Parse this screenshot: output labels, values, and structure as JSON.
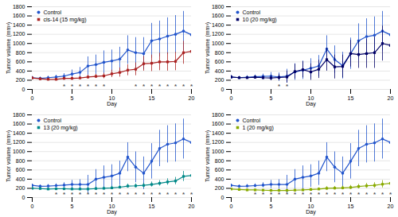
{
  "chart_data": [
    {
      "type": "line",
      "xlabel": "Day",
      "ylabel": "Tumor volume (mm³)",
      "x": [
        0,
        1,
        2,
        3,
        4,
        5,
        6,
        7,
        8,
        9,
        10,
        11,
        12,
        13,
        14,
        15,
        16,
        17,
        18,
        19,
        20
      ],
      "xlim": [
        0,
        20
      ],
      "xticks": [
        0,
        5,
        10,
        15,
        20
      ],
      "ylim": [
        0,
        1800
      ],
      "yticks": [
        0,
        200,
        400,
        600,
        800,
        1000,
        1200,
        1400,
        1600,
        1800
      ],
      "grid": "y",
      "legend": "upper left",
      "series": [
        {
          "name": "Control",
          "color": "#2255cc",
          "marker": "circle",
          "values": [
            255,
            240,
            255,
            270,
            290,
            335,
            370,
            510,
            540,
            590,
            620,
            660,
            860,
            800,
            780,
            1060,
            1100,
            1160,
            1200,
            1270,
            1190
          ],
          "errors": [
            30,
            30,
            35,
            40,
            55,
            90,
            110,
            200,
            210,
            250,
            240,
            260,
            310,
            330,
            350,
            380,
            390,
            400,
            410,
            430,
            420
          ]
        },
        {
          "name": "cis-14 (15 mg/kg)",
          "color": "#aa2222",
          "marker": "square",
          "values": [
            250,
            230,
            220,
            220,
            240,
            240,
            250,
            270,
            285,
            295,
            340,
            370,
            420,
            440,
            560,
            570,
            600,
            600,
            610,
            800,
            830
          ],
          "errors": [
            25,
            25,
            30,
            25,
            30,
            35,
            30,
            40,
            45,
            60,
            80,
            100,
            120,
            140,
            160,
            180,
            190,
            200,
            200,
            250,
            240
          ]
        }
      ],
      "annotations": [
        {
          "text": "*",
          "x": 4,
          "y": 20,
          "color": "#555555"
        },
        {
          "text": "*",
          "x": 5,
          "y": 20,
          "color": "#555555"
        },
        {
          "text": "*",
          "x": 6,
          "y": 20,
          "color": "#555555"
        },
        {
          "text": "*",
          "x": 7,
          "y": 20,
          "color": "#555555"
        },
        {
          "text": "*",
          "x": 8,
          "y": 20,
          "color": "#555555"
        },
        {
          "text": "*",
          "x": 9,
          "y": 20,
          "color": "#555555"
        },
        {
          "text": "*",
          "x": 13,
          "y": 20,
          "color": "#555555"
        },
        {
          "text": "*",
          "x": 14,
          "y": 20,
          "color": "#555555"
        },
        {
          "text": "*",
          "x": 15,
          "y": 20,
          "color": "#555555"
        },
        {
          "text": "*",
          "x": 16,
          "y": 20,
          "color": "#555555"
        },
        {
          "text": "*",
          "x": 17,
          "y": 20,
          "color": "#555555"
        },
        {
          "text": "*",
          "x": 18,
          "y": 20,
          "color": "#555555"
        },
        {
          "text": "*",
          "x": 19,
          "y": 20,
          "color": "#555555"
        },
        {
          "text": "*",
          "x": 20,
          "y": 20,
          "color": "#555555"
        }
      ]
    },
    {
      "type": "line",
      "xlabel": "Day",
      "ylabel": "Tumor volume (mm³)",
      "x": [
        0,
        1,
        2,
        3,
        4,
        5,
        6,
        7,
        8,
        9,
        10,
        11,
        12,
        13,
        14,
        15,
        16,
        17,
        18,
        19,
        20
      ],
      "xlim": [
        0,
        20
      ],
      "xticks": [
        0,
        5,
        10,
        15,
        20
      ],
      "ylim": [
        0,
        1800
      ],
      "yticks": [
        0,
        200,
        400,
        600,
        800,
        1000,
        1200,
        1400,
        1600,
        1800
      ],
      "grid": "y",
      "legend": "upper left",
      "series": [
        {
          "name": "Control",
          "color": "#2255cc",
          "marker": "circle",
          "values": [
            270,
            255,
            265,
            275,
            285,
            290,
            270,
            290,
            380,
            420,
            460,
            510,
            880,
            650,
            520,
            780,
            1060,
            1150,
            1180,
            1270,
            1190
          ],
          "errors": [
            35,
            30,
            35,
            40,
            50,
            80,
            90,
            150,
            180,
            200,
            210,
            230,
            290,
            300,
            290,
            340,
            370,
            390,
            400,
            430,
            420
          ]
        },
        {
          "name": "10 (20 mg/kg)",
          "color": "#000066",
          "marker": "square",
          "values": [
            270,
            255,
            255,
            265,
            255,
            250,
            260,
            270,
            390,
            430,
            380,
            440,
            650,
            490,
            500,
            780,
            760,
            780,
            800,
            1000,
            960
          ],
          "errors": [
            30,
            25,
            30,
            35,
            40,
            60,
            70,
            130,
            160,
            175,
            180,
            200,
            250,
            260,
            250,
            290,
            300,
            320,
            340,
            380,
            360
          ]
        }
      ],
      "annotations": [
        {
          "text": "*",
          "x": 6,
          "y": 20,
          "color": "#555555"
        },
        {
          "text": "*",
          "x": 7,
          "y": 20,
          "color": "#555555"
        }
      ]
    },
    {
      "type": "line",
      "xlabel": "Day",
      "ylabel": "Tumor volume (mm³)",
      "x": [
        0,
        1,
        2,
        3,
        4,
        5,
        6,
        7,
        8,
        9,
        10,
        11,
        12,
        13,
        14,
        15,
        16,
        17,
        18,
        19,
        20
      ],
      "xlim": [
        0,
        20
      ],
      "xticks": [
        0,
        5,
        10,
        15,
        20
      ],
      "ylim": [
        0,
        1800
      ],
      "yticks": [
        0,
        200,
        400,
        600,
        800,
        1000,
        1200,
        1400,
        1600,
        1800
      ],
      "grid": "y",
      "legend": "upper left",
      "series": [
        {
          "name": "Control",
          "color": "#2255cc",
          "marker": "circle",
          "values": [
            265,
            245,
            250,
            260,
            270,
            285,
            285,
            285,
            400,
            440,
            470,
            530,
            880,
            660,
            530,
            790,
            1070,
            1160,
            1190,
            1275,
            1200
          ],
          "errors": [
            30,
            30,
            35,
            40,
            55,
            90,
            105,
            200,
            210,
            250,
            245,
            265,
            315,
            335,
            355,
            385,
            395,
            405,
            415,
            435,
            425
          ]
        },
        {
          "name": "13 (20 mg/kg)",
          "color": "#008888",
          "marker": "square",
          "values": [
            200,
            195,
            185,
            190,
            190,
            185,
            185,
            185,
            195,
            200,
            210,
            225,
            250,
            255,
            265,
            285,
            310,
            340,
            360,
            460,
            480
          ],
          "errors": [
            20,
            20,
            20,
            20,
            20,
            25,
            25,
            30,
            30,
            30,
            35,
            35,
            45,
            45,
            50,
            55,
            60,
            70,
            80,
            110,
            120
          ]
        }
      ],
      "annotations": [
        {
          "text": "*",
          "x": 3,
          "y": 20,
          "color": "#555555"
        },
        {
          "text": "*",
          "x": 4,
          "y": 20,
          "color": "#555555"
        },
        {
          "text": "*",
          "x": 5,
          "y": 20,
          "color": "#555555"
        },
        {
          "text": "*",
          "x": 6,
          "y": 20,
          "color": "#555555"
        },
        {
          "text": "*",
          "x": 7,
          "y": 20,
          "color": "#555555"
        },
        {
          "text": "*",
          "x": 8,
          "y": 20,
          "color": "#555555"
        },
        {
          "text": "*",
          "x": 9,
          "y": 20,
          "color": "#555555"
        },
        {
          "text": "*",
          "x": 10,
          "y": 20,
          "color": "#555555"
        },
        {
          "text": "*",
          "x": 11,
          "y": 20,
          "color": "#555555"
        },
        {
          "text": "*",
          "x": 12,
          "y": 20,
          "color": "#555555"
        },
        {
          "text": "*",
          "x": 13,
          "y": 20,
          "color": "#555555"
        },
        {
          "text": "*",
          "x": 14,
          "y": 20,
          "color": "#555555"
        },
        {
          "text": "*",
          "x": 15,
          "y": 20,
          "color": "#555555"
        },
        {
          "text": "*",
          "x": 16,
          "y": 20,
          "color": "#555555"
        },
        {
          "text": "*",
          "x": 17,
          "y": 20,
          "color": "#555555"
        },
        {
          "text": "*",
          "x": 18,
          "y": 20,
          "color": "#555555"
        },
        {
          "text": "*",
          "x": 19,
          "y": 20,
          "color": "#555555"
        },
        {
          "text": "*",
          "x": 20,
          "y": 20,
          "color": "#555555"
        }
      ]
    },
    {
      "type": "line",
      "xlabel": "Day",
      "ylabel": "Tumor volume (mm³)",
      "x": [
        0,
        1,
        2,
        3,
        4,
        5,
        6,
        7,
        8,
        9,
        10,
        11,
        12,
        13,
        14,
        15,
        16,
        17,
        18,
        19,
        20
      ],
      "xlim": [
        0,
        20
      ],
      "xticks": [
        0,
        5,
        10,
        15,
        20
      ],
      "ylim": [
        0,
        1800
      ],
      "yticks": [
        0,
        200,
        400,
        600,
        800,
        1000,
        1200,
        1400,
        1600,
        1800
      ],
      "grid": "y",
      "legend": "upper left",
      "series": [
        {
          "name": "Control",
          "color": "#2255cc",
          "marker": "circle",
          "values": [
            265,
            245,
            250,
            260,
            270,
            285,
            285,
            285,
            400,
            440,
            470,
            530,
            880,
            660,
            530,
            790,
            1070,
            1160,
            1190,
            1275,
            1200
          ],
          "errors": [
            30,
            30,
            35,
            40,
            55,
            90,
            105,
            200,
            210,
            250,
            245,
            265,
            315,
            335,
            355,
            385,
            395,
            405,
            415,
            435,
            425
          ]
        },
        {
          "name": "1 (20 mg/kg)",
          "color": "#88aa00",
          "marker": "square",
          "values": [
            185,
            175,
            165,
            165,
            160,
            155,
            155,
            155,
            160,
            165,
            175,
            185,
            200,
            205,
            210,
            220,
            240,
            255,
            265,
            290,
            310
          ],
          "errors": [
            18,
            18,
            18,
            18,
            18,
            22,
            22,
            25,
            25,
            25,
            28,
            28,
            38,
            38,
            40,
            45,
            50,
            55,
            60,
            80,
            90
          ]
        }
      ],
      "annotations": [
        {
          "text": "*",
          "x": 3,
          "y": 20,
          "color": "#555555"
        },
        {
          "text": "*",
          "x": 4,
          "y": 20,
          "color": "#555555"
        },
        {
          "text": "*",
          "x": 5,
          "y": 20,
          "color": "#555555"
        },
        {
          "text": "*",
          "x": 6,
          "y": 20,
          "color": "#555555"
        },
        {
          "text": "*",
          "x": 7,
          "y": 20,
          "color": "#555555"
        },
        {
          "text": "*",
          "x": 8,
          "y": 20,
          "color": "#555555"
        },
        {
          "text": "*",
          "x": 9,
          "y": 20,
          "color": "#555555"
        },
        {
          "text": "*",
          "x": 10,
          "y": 20,
          "color": "#555555"
        },
        {
          "text": "*",
          "x": 11,
          "y": 20,
          "color": "#555555"
        },
        {
          "text": "*",
          "x": 12,
          "y": 20,
          "color": "#555555"
        },
        {
          "text": "*",
          "x": 13,
          "y": 20,
          "color": "#555555"
        },
        {
          "text": "*",
          "x": 14,
          "y": 20,
          "color": "#555555"
        },
        {
          "text": "*",
          "x": 15,
          "y": 20,
          "color": "#555555"
        },
        {
          "text": "*",
          "x": 16,
          "y": 20,
          "color": "#555555"
        },
        {
          "text": "*",
          "x": 17,
          "y": 20,
          "color": "#555555"
        },
        {
          "text": "*",
          "x": 18,
          "y": 20,
          "color": "#555555"
        },
        {
          "text": "*",
          "x": 19,
          "y": 20,
          "color": "#555555"
        },
        {
          "text": "*",
          "x": 20,
          "y": 20,
          "color": "#555555"
        }
      ]
    }
  ]
}
